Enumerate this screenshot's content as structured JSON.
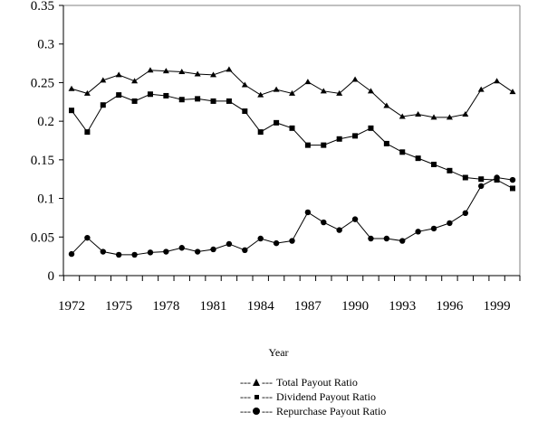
{
  "chart_data": {
    "type": "line",
    "title": "",
    "xlabel": "Year",
    "ylabel": "",
    "x": [
      1972,
      1973,
      1974,
      1975,
      1976,
      1977,
      1978,
      1979,
      1980,
      1981,
      1982,
      1983,
      1984,
      1985,
      1986,
      1987,
      1988,
      1989,
      1990,
      1991,
      1992,
      1993,
      1994,
      1995,
      1996,
      1997,
      1998,
      1999,
      2000
    ],
    "xticks": [
      "1972",
      "1975",
      "1978",
      "1981",
      "1984",
      "1987",
      "1990",
      "1993",
      "1996",
      "1999"
    ],
    "xtick_values": [
      1972,
      1975,
      1978,
      1981,
      1984,
      1987,
      1990,
      1993,
      1996,
      1999
    ],
    "yticks": [
      "0",
      "0.05",
      "0.1",
      "0.15",
      "0.2",
      "0.25",
      "0.3",
      "0.35"
    ],
    "ytick_values": [
      0,
      0.05,
      0.1,
      0.15,
      0.2,
      0.25,
      0.3,
      0.35
    ],
    "ylim": [
      0,
      0.35
    ],
    "xlim": [
      1971.5,
      2000.5
    ],
    "grid": false,
    "legend_position": "bottom",
    "series": [
      {
        "name": "Total Payout Ratio",
        "marker": "triangle",
        "legend_prefix": "---",
        "legend_suffix": "---",
        "values": [
          0.242,
          0.236,
          0.253,
          0.26,
          0.252,
          0.266,
          0.265,
          0.264,
          0.261,
          0.26,
          0.267,
          0.247,
          0.234,
          0.241,
          0.236,
          0.251,
          0.239,
          0.236,
          0.254,
          0.239,
          0.22,
          0.206,
          0.209,
          0.205,
          0.205,
          0.209,
          0.241,
          0.252,
          0.238
        ]
      },
      {
        "name": "Dividend Payout Ratio",
        "marker": "square",
        "legend_prefix": "---",
        "legend_suffix": "---",
        "values": [
          0.214,
          0.186,
          0.221,
          0.234,
          0.226,
          0.235,
          0.233,
          0.228,
          0.229,
          0.226,
          0.226,
          0.213,
          0.186,
          0.198,
          0.191,
          0.169,
          0.169,
          0.177,
          0.181,
          0.191,
          0.171,
          0.16,
          0.152,
          0.144,
          0.136,
          0.127,
          0.125,
          0.124,
          0.113
        ]
      },
      {
        "name": "Repurchase Payout Ratio",
        "marker": "circle",
        "legend_prefix": "---",
        "legend_suffix": "---",
        "values": [
          0.028,
          0.049,
          0.031,
          0.027,
          0.027,
          0.03,
          0.031,
          0.036,
          0.031,
          0.034,
          0.041,
          0.033,
          0.048,
          0.042,
          0.045,
          0.082,
          0.069,
          0.059,
          0.073,
          0.048,
          0.048,
          0.045,
          0.057,
          0.061,
          0.068,
          0.081,
          0.116,
          0.127,
          0.124
        ]
      }
    ]
  }
}
